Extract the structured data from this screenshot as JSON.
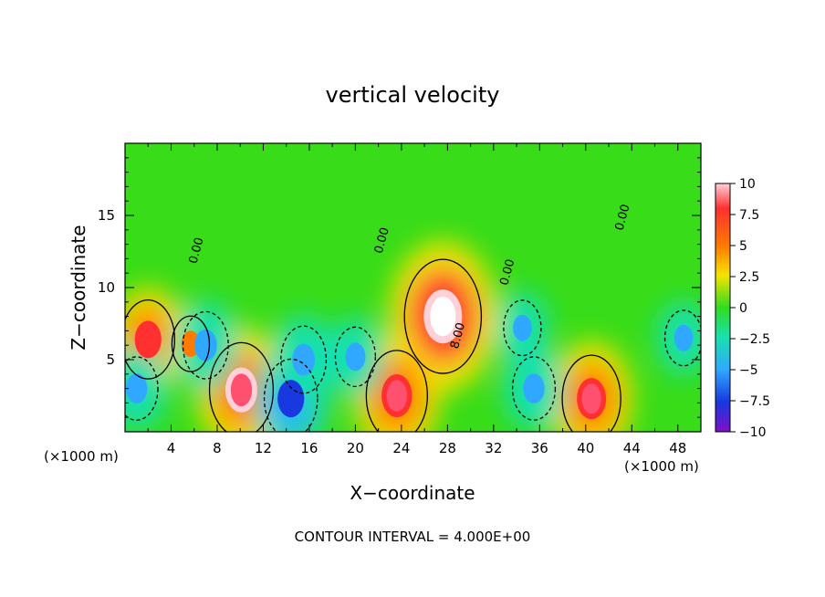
{
  "chart_data": {
    "type": "heatmap",
    "title": "vertical velocity",
    "xlabel": "X−coordinate",
    "ylabel": "Z−coordinate",
    "x_unit_left": "(×1000 m)",
    "x_unit_right": "(×1000 m)",
    "footer": "CONTOUR INTERVAL = 4.000E+00",
    "xlim": [
      0,
      50
    ],
    "ylim": [
      0,
      20
    ],
    "x_ticks": [
      4,
      8,
      12,
      16,
      20,
      24,
      28,
      32,
      36,
      40,
      44,
      48
    ],
    "x_tick_labels": [
      "4",
      "8",
      "12",
      "16",
      "20",
      "24",
      "28",
      "32",
      "36",
      "40",
      "44",
      "48"
    ],
    "y_ticks": [
      5,
      10,
      15
    ],
    "y_tick_labels": [
      "5",
      "10",
      "15"
    ],
    "colorbar": {
      "range": [
        -10,
        10
      ],
      "ticks": [
        10,
        7.5,
        5,
        2.5,
        0,
        -2.5,
        -5,
        -7.5,
        -10
      ],
      "tick_labels": [
        "10",
        "7.5",
        "5",
        "2.5",
        "0",
        "−2.5",
        "−5",
        "−7.5",
        "−10"
      ]
    },
    "contour_labels": [
      {
        "text": "0.00",
        "x": 6.5,
        "y": 12.5
      },
      {
        "text": "0.00",
        "x": 22.6,
        "y": 13.2
      },
      {
        "text": "0.00",
        "x": 33.5,
        "y": 11.0
      },
      {
        "text": "0.00",
        "x": 43.5,
        "y": 14.8
      },
      {
        "text": "8.00",
        "x": 29.2,
        "y": 6.6
      }
    ],
    "features": [
      {
        "x": 27.6,
        "y": 8.0,
        "w": 11.5,
        "kind": "updraft"
      },
      {
        "x": 10.1,
        "y": 2.9,
        "w": 9.0,
        "kind": "updraft"
      },
      {
        "x": 23.6,
        "y": 2.5,
        "w": 8.5,
        "kind": "updraft"
      },
      {
        "x": 40.5,
        "y": 2.3,
        "w": 8.0,
        "kind": "updraft"
      },
      {
        "x": 2.0,
        "y": 6.4,
        "w": 7.0,
        "kind": "updraft"
      },
      {
        "x": 5.7,
        "y": 6.1,
        "w": 4.0,
        "kind": "updraft"
      },
      {
        "x": 14.4,
        "y": 2.3,
        "w": -7.0,
        "kind": "downdraft"
      },
      {
        "x": 15.5,
        "y": 5.0,
        "w": -5.5,
        "kind": "downdraft"
      },
      {
        "x": 1.0,
        "y": 3.0,
        "w": -5.0,
        "kind": "downdraft"
      },
      {
        "x": 7.0,
        "y": 6.0,
        "w": -5.5,
        "kind": "downdraft"
      },
      {
        "x": 20.0,
        "y": 5.2,
        "w": -4.5,
        "kind": "downdraft"
      },
      {
        "x": 35.5,
        "y": 3.0,
        "w": -5.0,
        "kind": "downdraft"
      },
      {
        "x": 34.5,
        "y": 7.2,
        "w": -4.0,
        "kind": "downdraft"
      },
      {
        "x": 48.5,
        "y": 6.5,
        "w": -4.0,
        "kind": "downdraft"
      }
    ]
  }
}
